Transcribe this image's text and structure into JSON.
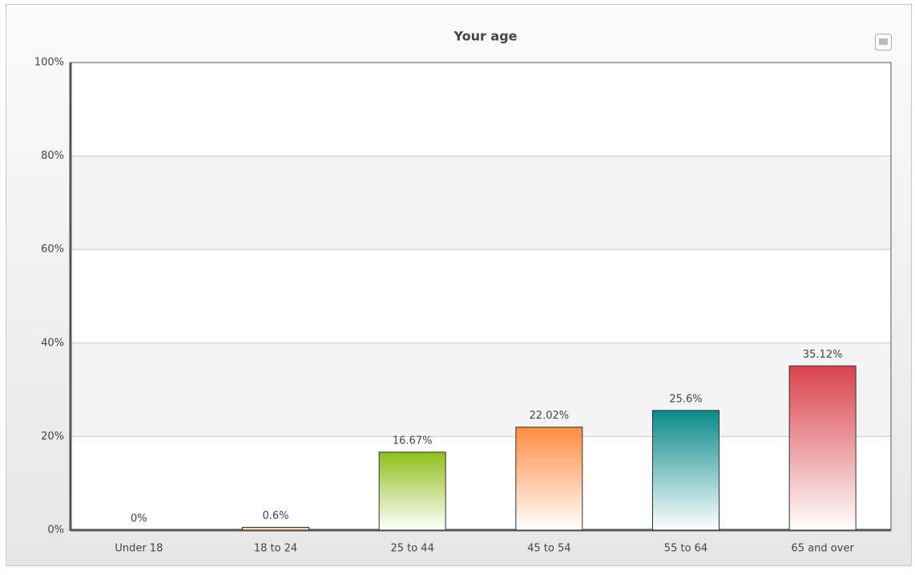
{
  "chart_data": {
    "type": "bar",
    "title": "Your age",
    "categories": [
      "Under 18",
      "18 to 24",
      "25 to 44",
      "45 to 54",
      "55 to 64",
      "65 and over"
    ],
    "values": [
      0,
      0.6,
      16.67,
      22.02,
      25.6,
      35.12
    ],
    "value_labels": [
      "0%",
      "0.6%",
      "16.67%",
      "22.02%",
      "25.6%",
      "35.12%"
    ],
    "colors": [
      "#e0b050",
      "#e0b050",
      "#8fbf1a",
      "#ff8c42",
      "#0a8a8a",
      "#d9434b"
    ],
    "ylim": [
      0,
      100
    ],
    "yticks": [
      {
        "value": 0,
        "label": "0%"
      },
      {
        "value": 20,
        "label": "20%"
      },
      {
        "value": 40,
        "label": "40%"
      },
      {
        "value": 60,
        "label": "60%"
      },
      {
        "value": 80,
        "label": "80%"
      },
      {
        "value": 100,
        "label": "100%"
      }
    ],
    "grid": true
  }
}
